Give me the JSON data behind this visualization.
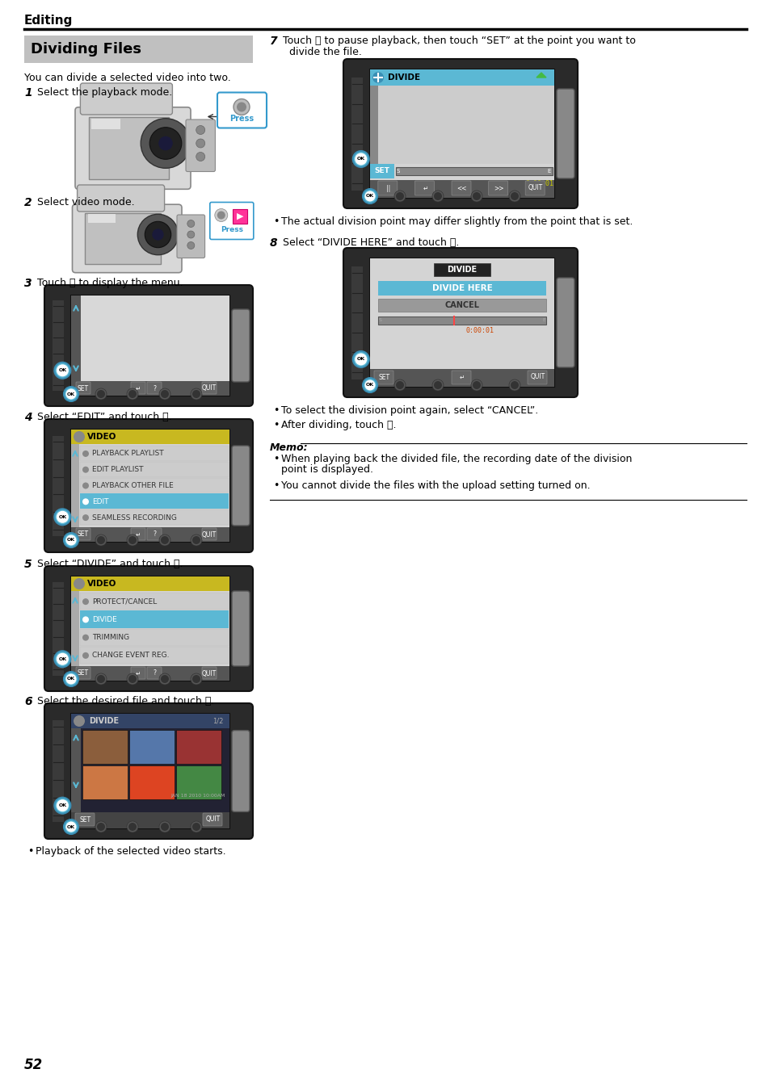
{
  "page_title": "Editing",
  "section_title": "Dividing Files",
  "intro_text": "You can divide a selected video into two.",
  "steps": [
    {
      "num": "1",
      "text": "Select the playback mode."
    },
    {
      "num": "2",
      "text": "Select video mode."
    },
    {
      "num": "3",
      "text": "Touch Ⓞ to display the menu."
    },
    {
      "num": "4",
      "text": "Select “EDIT” and touch Ⓞ."
    },
    {
      "num": "5",
      "text": "Select “DIVIDE” and touch Ⓞ."
    },
    {
      "num": "6",
      "text": "Select the desired file and touch Ⓞ."
    },
    {
      "num": "7",
      "text": "Touch Ⓞ to pause playback, then touch “SET” at the point you want to\n    divide the file."
    },
    {
      "num": "8",
      "text": "Select “DIVIDE HERE” and touch Ⓞ."
    }
  ],
  "bullet_notes_6": [
    "Playback of the selected video starts."
  ],
  "bullet_notes_7": [
    "The actual division point may differ slightly from the point that is set."
  ],
  "bullet_notes_8": [
    "To select the division point again, select “CANCEL”.",
    "After dividing, touch Ⓞ."
  ],
  "memo_title": "Memo:",
  "memo_bullets": [
    "When playing back the divided file, the recording date of the division\n  point is displayed.",
    "You cannot divide the files with the upload setting turned on."
  ],
  "page_number": "52",
  "bg_color": "#ffffff",
  "section_bg": "#c0c0c0",
  "divider_color": "#000000"
}
